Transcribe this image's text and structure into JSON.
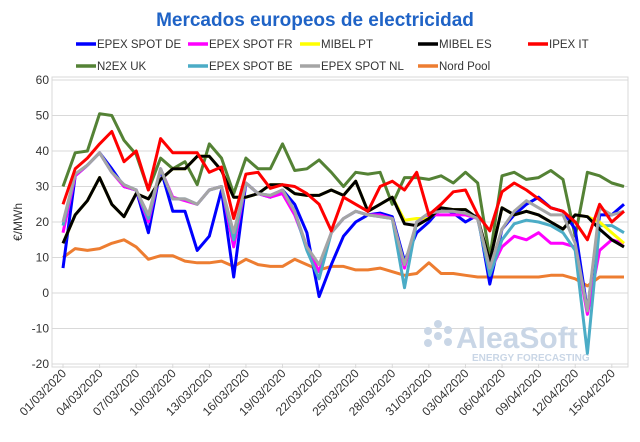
{
  "chart_data": {
    "type": "line",
    "title": "Mercados europeos de electricidad",
    "xlabel": "",
    "ylabel": "€/MWh",
    "ylim": [
      -20,
      60
    ],
    "yticks": [
      -20,
      -10,
      0,
      10,
      20,
      30,
      40,
      50,
      60
    ],
    "grid": true,
    "legend_position": "top",
    "xtick_labels": [
      "01/03/2020",
      "04/03/2020",
      "07/03/2020",
      "10/03/2020",
      "13/03/2020",
      "16/03/2020",
      "19/03/2020",
      "22/03/2020",
      "25/03/2020",
      "28/03/2020",
      "31/03/2020",
      "03/04/2020",
      "06/04/2020",
      "09/04/2020",
      "12/04/2020",
      "15/04/2020"
    ],
    "x": [
      "01/03/2020",
      "02/03/2020",
      "03/03/2020",
      "04/03/2020",
      "05/03/2020",
      "06/03/2020",
      "07/03/2020",
      "08/03/2020",
      "09/03/2020",
      "10/03/2020",
      "11/03/2020",
      "12/03/2020",
      "13/03/2020",
      "14/03/2020",
      "15/03/2020",
      "16/03/2020",
      "17/03/2020",
      "18/03/2020",
      "19/03/2020",
      "20/03/2020",
      "21/03/2020",
      "22/03/2020",
      "23/03/2020",
      "24/03/2020",
      "25/03/2020",
      "26/03/2020",
      "27/03/2020",
      "28/03/2020",
      "29/03/2020",
      "30/03/2020",
      "31/03/2020",
      "01/04/2020",
      "02/04/2020",
      "03/04/2020",
      "04/04/2020",
      "05/04/2020",
      "06/04/2020",
      "07/04/2020",
      "08/04/2020",
      "09/04/2020",
      "10/04/2020",
      "11/04/2020",
      "12/04/2020",
      "13/04/2020",
      "14/04/2020",
      "15/04/2020",
      "16/04/2020"
    ],
    "series": [
      {
        "name": "N2EX UK",
        "color": "#548235",
        "values": [
          30,
          39.5,
          40,
          50.5,
          50,
          43,
          39,
          29,
          38,
          35,
          37,
          30.5,
          42,
          38,
          28,
          38,
          35,
          35,
          42,
          34.5,
          35,
          37.5,
          34,
          30,
          34,
          33.5,
          34,
          25,
          32.5,
          32.5,
          32,
          33,
          31,
          34,
          31,
          10,
          33,
          34,
          32,
          32.5,
          34.5,
          32,
          16,
          34,
          33,
          31,
          30
        ]
      },
      {
        "name": "Nord Pool",
        "color": "#ed7d31",
        "values": [
          10,
          12.5,
          12,
          12.5,
          14,
          15,
          13,
          9.5,
          10.5,
          10.5,
          9,
          8.5,
          8.5,
          9,
          7.5,
          9.5,
          8,
          7.5,
          7.5,
          9.5,
          8,
          6.5,
          7.5,
          7.5,
          6.5,
          6.5,
          7,
          6,
          5,
          5.5,
          8.5,
          5.5,
          5.5,
          5,
          4.5,
          4.5,
          4.5,
          4.5,
          4.5,
          4.5,
          5,
          5,
          4,
          2,
          4.5,
          4.5,
          4.5
        ]
      },
      {
        "name": "EPEX SPOT DE",
        "color": "#0000ff",
        "values": [
          7,
          33,
          36,
          39.5,
          35,
          30,
          29,
          17,
          35,
          23,
          23,
          12,
          16,
          29,
          4.5,
          31,
          28,
          27,
          29,
          25,
          17,
          -1,
          8,
          16,
          20,
          22,
          22.5,
          21.5,
          9,
          17,
          20,
          24,
          22.5,
          20,
          22,
          2.5,
          18,
          22,
          25,
          27,
          24,
          23,
          18,
          -5,
          22,
          22,
          25
        ]
      },
      {
        "name": "EPEX SPOT FR",
        "color": "#ff00ff",
        "values": [
          17,
          33,
          36,
          39.5,
          34,
          30,
          29,
          20,
          35,
          27,
          26,
          25,
          29,
          30,
          13,
          31,
          28,
          27,
          28,
          22,
          13,
          6,
          17,
          21,
          23,
          22,
          22,
          21,
          7,
          20,
          22,
          22,
          22,
          22,
          21,
          6,
          13,
          16,
          15,
          17,
          14,
          14,
          13,
          -6,
          12,
          15,
          14
        ]
      },
      {
        "name": "EPEX SPOT BE",
        "color": "#4bacc6",
        "values": [
          19,
          33.5,
          36,
          39.5,
          34,
          30.5,
          29,
          21,
          35,
          26.5,
          26.5,
          25,
          29,
          30,
          15,
          31,
          28,
          27.5,
          29,
          23,
          12,
          4,
          17,
          21,
          23,
          22,
          21.5,
          21,
          1.5,
          20,
          22.5,
          23,
          23,
          22.5,
          21,
          5,
          15,
          19.5,
          20.5,
          20,
          19,
          17,
          12,
          -17,
          19,
          19,
          17
        ]
      },
      {
        "name": "MIBEL PT",
        "color": "#ffff00",
        "values": [
          14,
          22,
          26,
          32.5,
          25,
          21.5,
          28,
          26.5,
          32,
          35,
          35,
          38.5,
          38.5,
          34.5,
          27,
          27,
          28,
          30.5,
          30.5,
          28,
          27.5,
          27.5,
          29,
          27.5,
          31.5,
          23,
          25,
          27,
          20.5,
          21,
          21,
          24,
          23.5,
          23.5,
          21,
          9,
          24,
          22,
          23,
          22,
          20,
          18,
          22,
          21.5,
          20,
          17,
          14
        ]
      },
      {
        "name": "MIBEL ES",
        "color": "#000000",
        "values": [
          14,
          22,
          26,
          32.5,
          25,
          21.5,
          28,
          26.5,
          32,
          35,
          35,
          38.5,
          38.5,
          34.5,
          27,
          27,
          28,
          30.5,
          30.5,
          28,
          27.5,
          27.5,
          29,
          27.5,
          31.5,
          23,
          25,
          27,
          19.5,
          19,
          21,
          24,
          23.5,
          23.5,
          21,
          9,
          24,
          22,
          23,
          22,
          20,
          18,
          22,
          21.5,
          18,
          15,
          13
        ]
      },
      {
        "name": "EPEX SPOT NL",
        "color": "#a5a5a5",
        "values": [
          20,
          33.5,
          36,
          39.5,
          34,
          30.5,
          29,
          22,
          35,
          26.5,
          26.5,
          25,
          29,
          30,
          17,
          31,
          28,
          27.5,
          29,
          23,
          13,
          8,
          17,
          21,
          23,
          22,
          21.5,
          21,
          8,
          20,
          22.5,
          23,
          23,
          22.5,
          21,
          7,
          18,
          23,
          26,
          24,
          22,
          22,
          14,
          -5,
          24,
          22,
          23
        ]
      },
      {
        "name": "IPEX IT",
        "color": "#ff0000",
        "values": [
          25,
          35,
          38,
          42,
          45.5,
          37,
          40,
          29,
          43.5,
          39.5,
          39.5,
          39.5,
          34,
          35.5,
          21,
          33.5,
          34,
          29.5,
          30.5,
          30,
          28,
          25,
          17.5,
          27,
          25,
          23,
          30,
          31.5,
          29,
          34,
          22,
          25,
          28.5,
          29,
          22,
          17.5,
          28.5,
          31,
          29,
          26.5,
          24,
          23,
          20,
          15,
          25,
          20,
          23
        ]
      }
    ],
    "legend": [
      {
        "name": "EPEX SPOT DE",
        "color": "#0000ff"
      },
      {
        "name": "EPEX SPOT FR",
        "color": "#ff00ff"
      },
      {
        "name": "MIBEL PT",
        "color": "#ffff00"
      },
      {
        "name": "MIBEL ES",
        "color": "#000000"
      },
      {
        "name": "IPEX IT",
        "color": "#ff0000"
      },
      {
        "name": "N2EX UK",
        "color": "#548235"
      },
      {
        "name": "EPEX SPOT BE",
        "color": "#4bacc6"
      },
      {
        "name": "EPEX SPOT NL",
        "color": "#a5a5a5"
      },
      {
        "name": "Nord Pool",
        "color": "#ed7d31"
      }
    ]
  },
  "watermark": {
    "logo_text": "AleaSoft",
    "tagline": "ENERGY FORECASTING"
  }
}
